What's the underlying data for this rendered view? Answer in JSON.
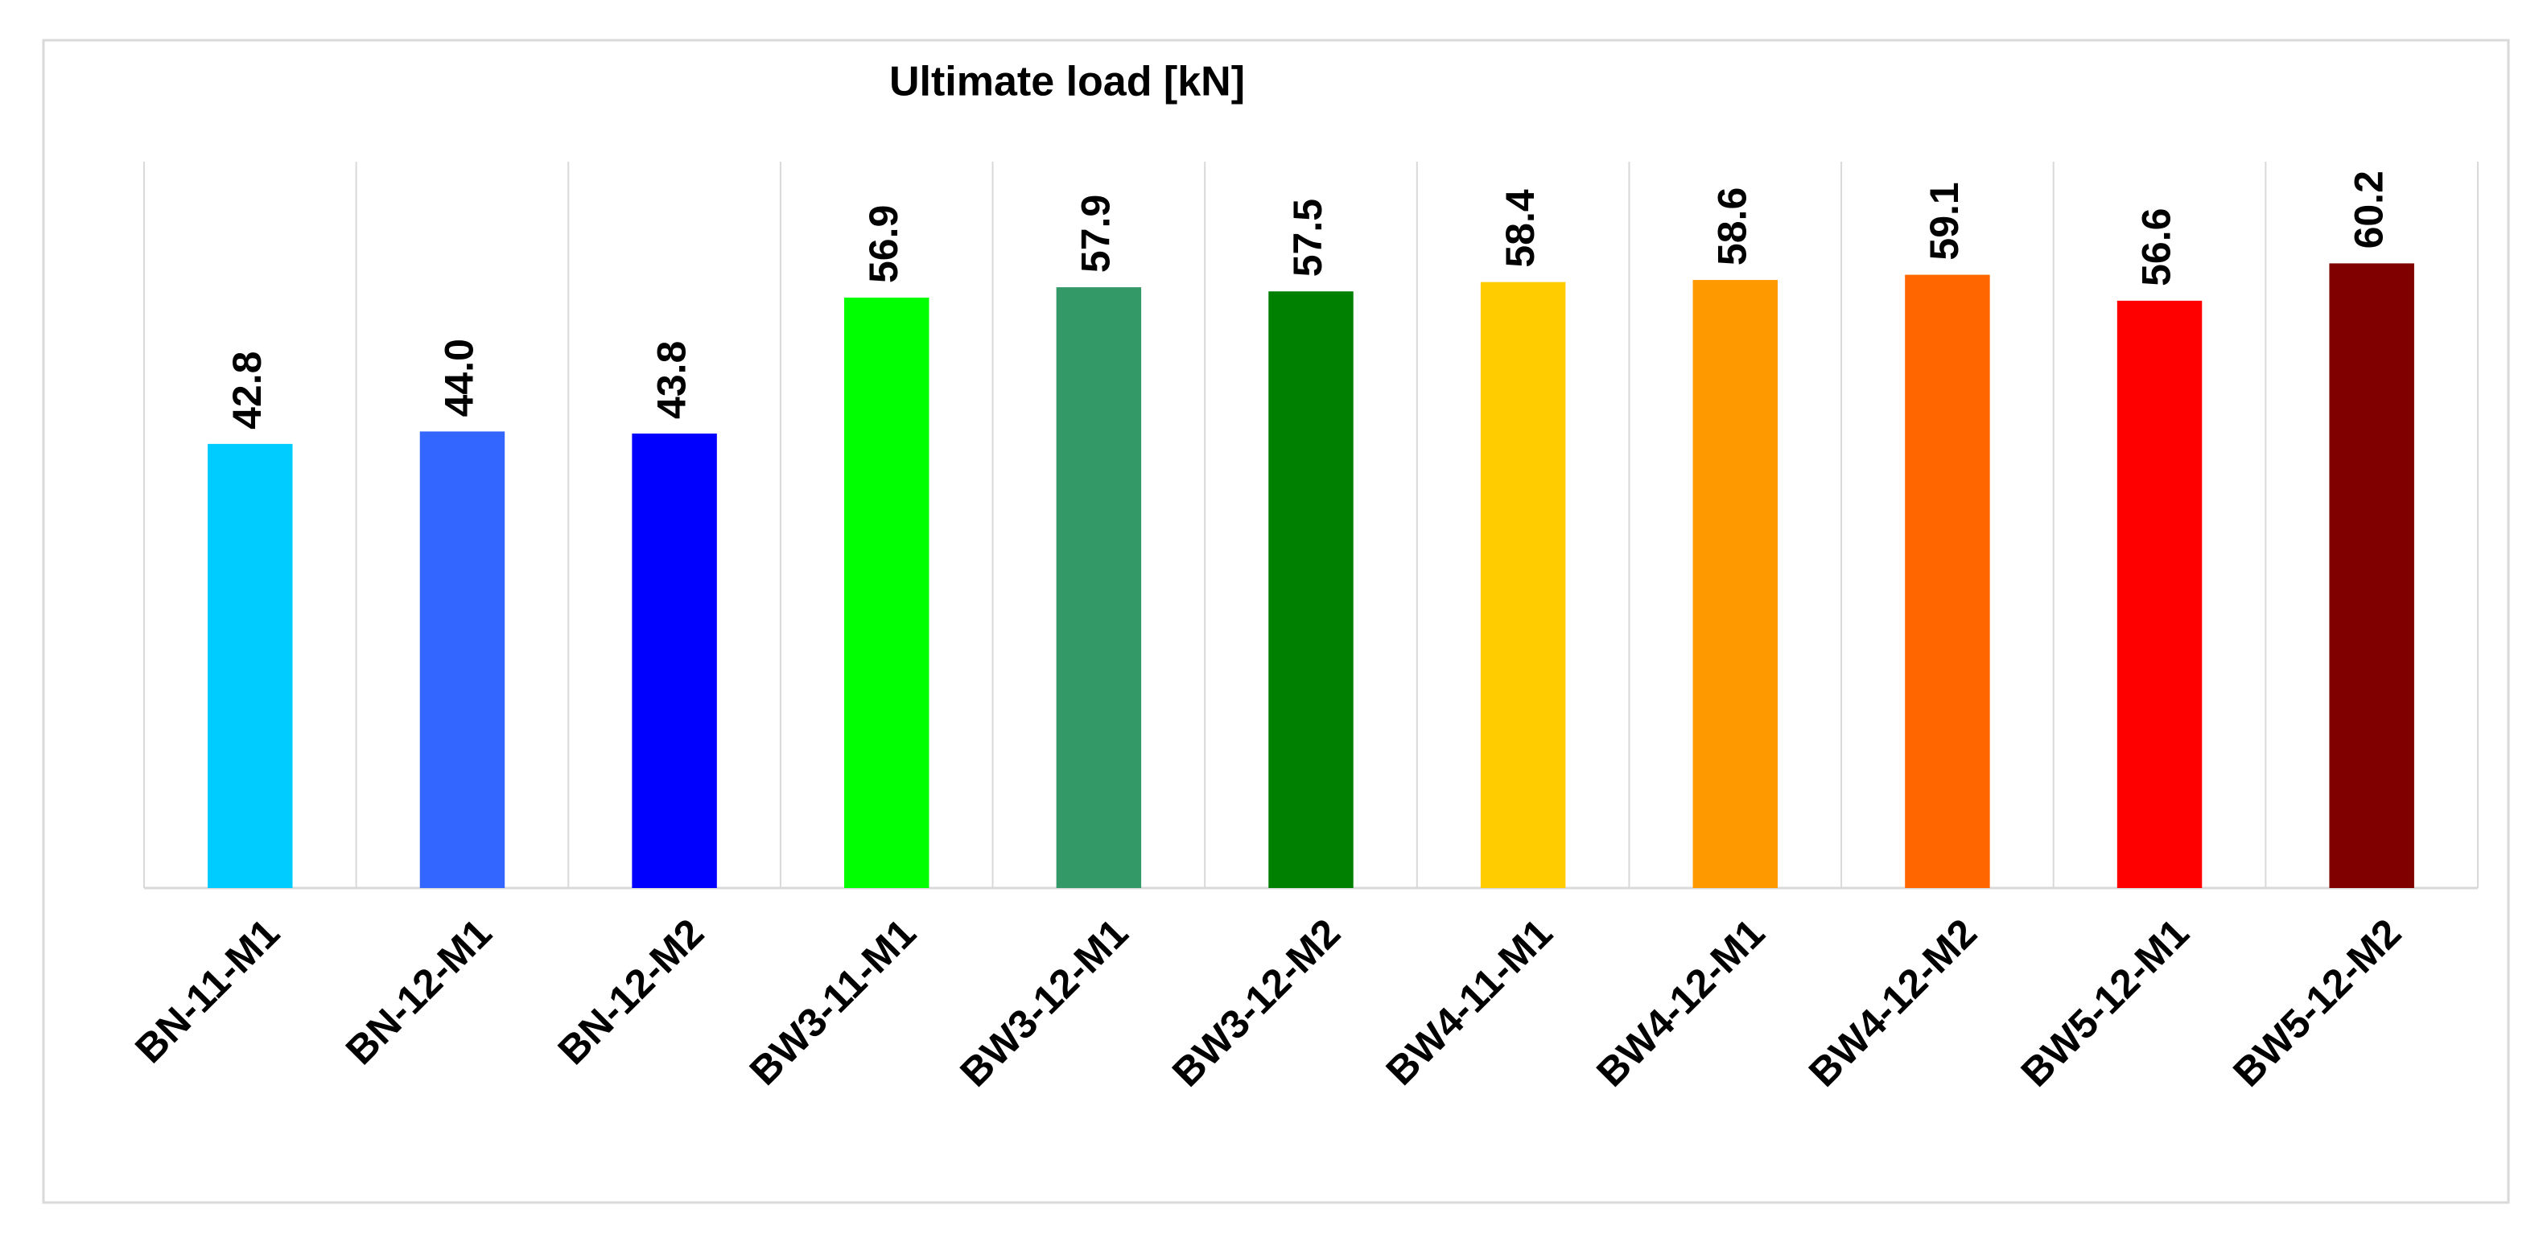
{
  "chart_data": {
    "type": "bar",
    "title": "Ultimate load [kN]",
    "categories": [
      "BN-11-M1",
      "BN-12-M1",
      "BN-12-M2",
      "BW3-11-M1",
      "BW3-12-M1",
      "BW3-12-M2",
      "BW4-11-M1",
      "BW4-12-M1",
      "BW4-12-M2",
      "BW5-12-M1",
      "BW5-12-M2"
    ],
    "values": [
      42.8,
      44.0,
      43.8,
      56.9,
      57.9,
      57.5,
      58.4,
      58.6,
      59.1,
      56.6,
      60.2
    ],
    "value_labels": [
      "42.8",
      "44.0",
      "43.8",
      "56.9",
      "57.9",
      "57.5",
      "58.4",
      "58.6",
      "59.1",
      "56.6",
      "60.2"
    ],
    "colors": [
      "#00ccff",
      "#3366ff",
      "#0000ff",
      "#00ff00",
      "#339966",
      "#008000",
      "#ffcc00",
      "#ff9900",
      "#ff6600",
      "#ff0000",
      "#800000"
    ],
    "ylim": [
      0,
      70
    ],
    "grid": true
  }
}
